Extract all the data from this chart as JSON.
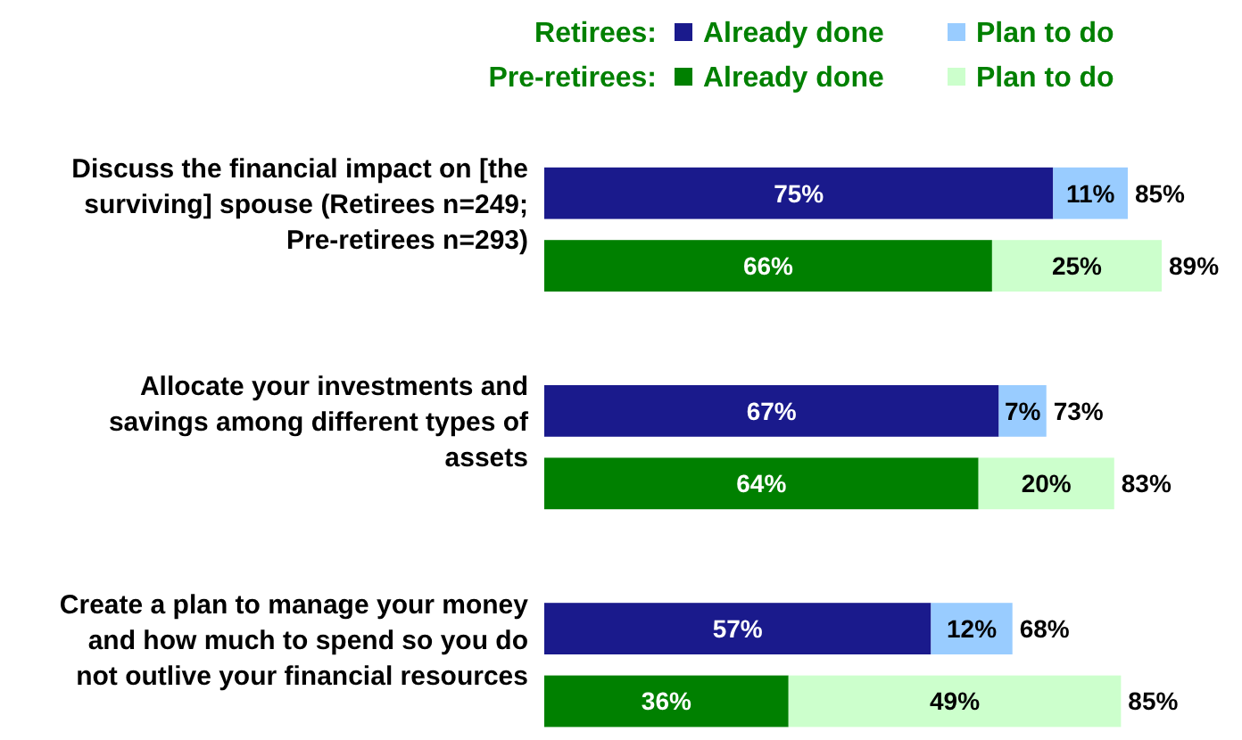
{
  "chart_data": {
    "type": "bar",
    "orientation": "horizontal",
    "stacked": true,
    "legend": "top right",
    "categories": [
      "Discuss the financial impact on [the surviving] spouse (Retirees n=249; Pre-retirees n=293)",
      null,
      null,
      "Allocate your investments and savings among different types of assets",
      null,
      null,
      "Create a plan to manage your money and how much to spend so you do not outlive your financial resources",
      null
    ],
    "series": [
      {
        "name": "Already done",
        "color": "#1a1a8c",
        "values": [
          75,
          null,
          null,
          67,
          null,
          null,
          57,
          null
        ],
        "value_labels": [
          "75%",
          null,
          null,
          "67%",
          null,
          null,
          "57%",
          null
        ]
      },
      {
        "name": "Plan to do",
        "color": "#99ccff",
        "values": [
          11,
          null,
          null,
          7,
          null,
          null,
          12,
          null
        ],
        "value_labels": [
          "11%",
          null,
          null,
          "7%",
          null,
          null,
          "12%",
          null
        ]
      },
      {
        "name": "Already done",
        "color": "#008000",
        "values": [
          null,
          66,
          null,
          null,
          64,
          null,
          null,
          36
        ],
        "value_labels": [
          null,
          "66%",
          null,
          null,
          "64%",
          null,
          null,
          "36%"
        ]
      },
      {
        "name": "Plan to do",
        "color": "#ccffcc",
        "values": [
          null,
          25,
          null,
          null,
          20,
          null,
          null,
          49
        ],
        "value_labels": [
          null,
          "25%",
          null,
          null,
          "20%",
          null,
          null,
          "49%"
        ]
      }
    ],
    "totals": [
      "85%",
      "89%",
      null,
      "73%",
      "83%",
      null,
      "68%",
      "85%"
    ],
    "annotations": [
      "Retirees:",
      "Pre-retirees:"
    ]
  }
}
